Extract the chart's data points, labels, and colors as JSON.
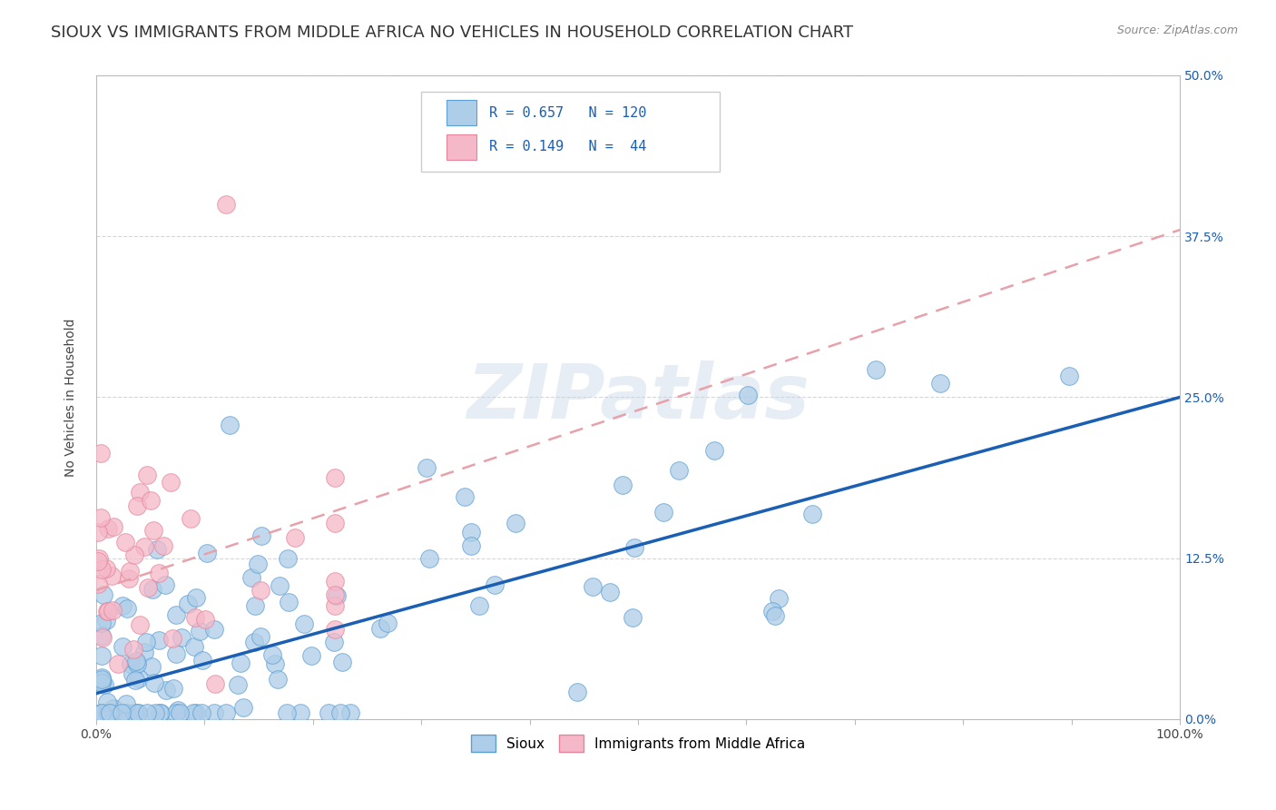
{
  "title": "SIOUX VS IMMIGRANTS FROM MIDDLE AFRICA NO VEHICLES IN HOUSEHOLD CORRELATION CHART",
  "source": "Source: ZipAtlas.com",
  "ylabel": "No Vehicles in Household",
  "xlim": [
    0,
    1.0
  ],
  "ylim": [
    0,
    0.5
  ],
  "xtick_show": [
    0.0,
    1.0
  ],
  "yticks": [
    0.0,
    0.125,
    0.25,
    0.375,
    0.5
  ],
  "series1_color": "#aecde8",
  "series1_edge": "#5b9fd4",
  "series2_color": "#f4b8c8",
  "series2_edge": "#e8849a",
  "line1_color": "#1a5fb4",
  "line2_color": "#e8a0aa",
  "line2_dash": [
    6,
    4
  ],
  "R1": 0.657,
  "N1": 120,
  "R2": 0.149,
  "N2": 44,
  "legend_label1": "Sioux",
  "legend_label2": "Immigrants from Middle Africa",
  "watermark_text": "ZIPatlas",
  "background_color": "#ffffff",
  "title_fontsize": 13,
  "axis_label_fontsize": 10,
  "tick_fontsize": 10,
  "legend_fontsize": 11,
  "grid_color": "#cccccc",
  "grid_style": "--",
  "right_tick_color": "#1a5fb4"
}
